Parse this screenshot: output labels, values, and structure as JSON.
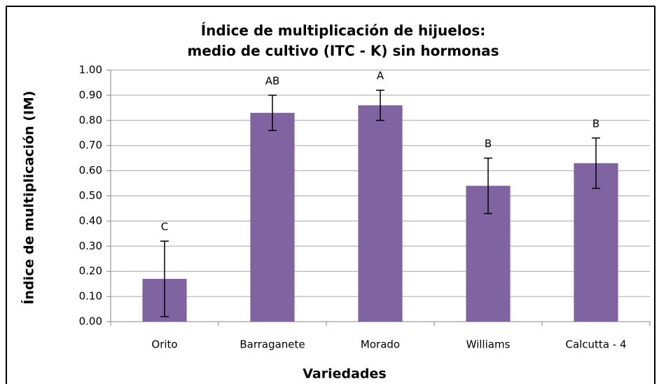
{
  "chart_data": {
    "type": "bar",
    "title": [
      "Índice de multiplicación de hijuelos:",
      "medio de cultivo (ITC - K) sin hormonas"
    ],
    "x_label": "Variedades",
    "y_label": "Índice de multiplicación (IM)",
    "categories": [
      "Orito",
      "Barraganete",
      "Morado",
      "Williams",
      "Calcutta - 4"
    ],
    "values": [
      0.17,
      0.83,
      0.86,
      0.54,
      0.63
    ],
    "errors": [
      0.15,
      0.07,
      0.06,
      0.11,
      0.1
    ],
    "annotations": [
      "C",
      "AB",
      "A",
      "B",
      "B"
    ],
    "color": "#8064a2",
    "ylim": [
      0,
      1
    ],
    "yticks": [
      {
        "value": 0,
        "label": "0.00"
      },
      {
        "value": 0.1,
        "label": "0.10"
      },
      {
        "value": 0.2,
        "label": "0.20"
      },
      {
        "value": 0.3,
        "label": "0.30"
      },
      {
        "value": 0.4,
        "label": "0.40"
      },
      {
        "value": 0.5,
        "label": "0.50"
      },
      {
        "value": 0.6,
        "label": "0.60"
      },
      {
        "value": 0.7,
        "label": "0.70"
      },
      {
        "value": 0.8,
        "label": "0.80"
      },
      {
        "value": 0.9,
        "label": "0.90"
      },
      {
        "value": 1,
        "label": "1.00"
      }
    ],
    "grid": true
  }
}
